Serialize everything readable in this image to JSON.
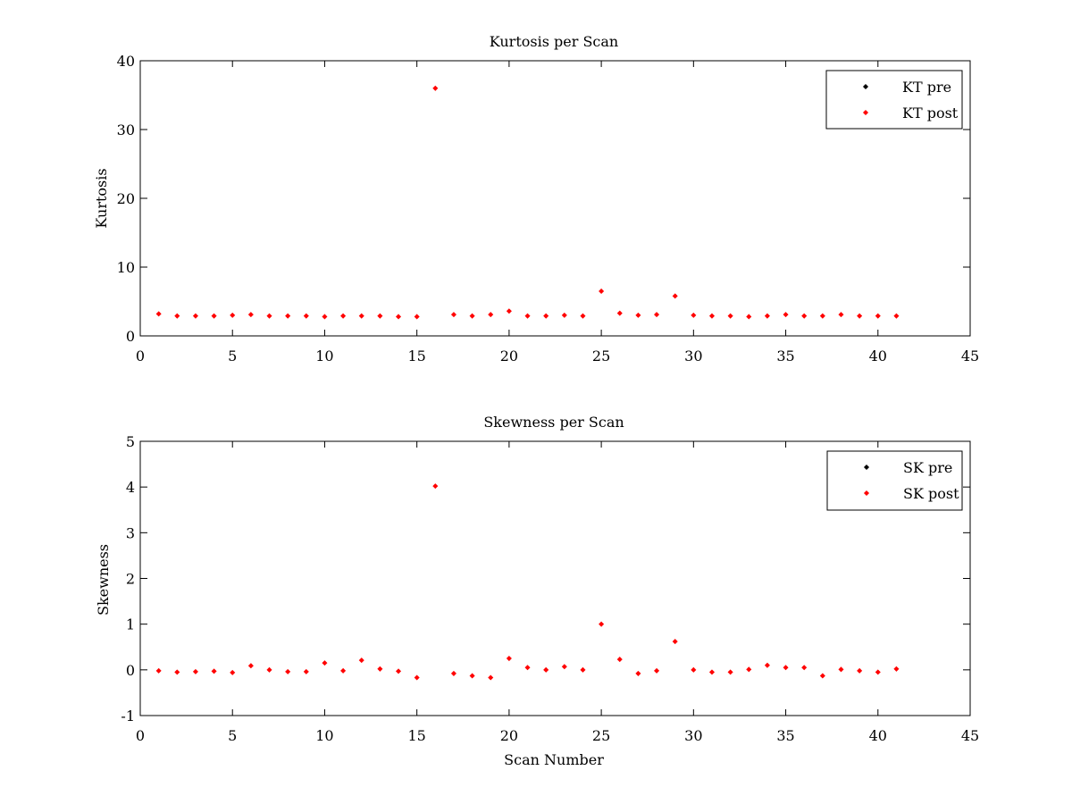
{
  "chart_data": [
    {
      "type": "scatter",
      "title": "Kurtosis per Scan",
      "xlabel": "",
      "ylabel": "Kurtosis",
      "xlim": [
        0,
        45
      ],
      "ylim": [
        0,
        40
      ],
      "xticks": [
        0,
        5,
        10,
        15,
        20,
        25,
        30,
        35,
        40,
        45
      ],
      "yticks": [
        0,
        10,
        20,
        30,
        40
      ],
      "grid": false,
      "legend_position": "top-right",
      "series": [
        {
          "name": "KT pre",
          "color": "#000000",
          "marker": "diamond",
          "x": [],
          "y": []
        },
        {
          "name": "KT post",
          "color": "#ff0000",
          "marker": "diamond",
          "x": [
            1,
            2,
            3,
            4,
            5,
            6,
            7,
            8,
            9,
            10,
            11,
            12,
            13,
            14,
            15,
            16,
            17,
            18,
            19,
            20,
            21,
            22,
            23,
            24,
            25,
            26,
            27,
            28,
            29,
            30,
            31,
            32,
            33,
            34,
            35,
            36,
            37,
            38,
            39,
            40,
            41
          ],
          "y": [
            3.2,
            2.9,
            2.9,
            2.9,
            3.0,
            3.1,
            2.9,
            2.9,
            2.9,
            2.8,
            2.9,
            2.9,
            2.9,
            2.8,
            2.8,
            36.0,
            3.1,
            2.9,
            3.1,
            3.6,
            2.9,
            2.9,
            3.0,
            2.9,
            6.5,
            3.3,
            3.0,
            3.1,
            5.8,
            3.0,
            2.9,
            2.9,
            2.8,
            2.9,
            3.1,
            2.9,
            2.9,
            3.1,
            2.9,
            2.9,
            2.9
          ]
        }
      ]
    },
    {
      "type": "scatter",
      "title": "Skewness per Scan",
      "xlabel": "Scan Number",
      "ylabel": "Skewness",
      "xlim": [
        0,
        45
      ],
      "ylim": [
        -1,
        5
      ],
      "xticks": [
        0,
        5,
        10,
        15,
        20,
        25,
        30,
        35,
        40,
        45
      ],
      "yticks": [
        -1,
        0,
        1,
        2,
        3,
        4,
        5
      ],
      "grid": false,
      "legend_position": "top-right",
      "series": [
        {
          "name": "SK pre",
          "color": "#000000",
          "marker": "diamond",
          "x": [],
          "y": []
        },
        {
          "name": "SK post",
          "color": "#ff0000",
          "marker": "diamond",
          "x": [
            1,
            2,
            3,
            4,
            5,
            6,
            7,
            8,
            9,
            10,
            11,
            12,
            13,
            14,
            15,
            16,
            17,
            18,
            19,
            20,
            21,
            22,
            23,
            24,
            25,
            26,
            27,
            28,
            29,
            30,
            31,
            32,
            33,
            34,
            35,
            36,
            37,
            38,
            39,
            40,
            41
          ],
          "y": [
            -0.02,
            -0.05,
            -0.04,
            -0.03,
            -0.06,
            0.09,
            0.0,
            -0.04,
            -0.04,
            0.15,
            -0.02,
            0.21,
            0.02,
            -0.03,
            -0.17,
            4.02,
            -0.08,
            -0.13,
            -0.17,
            0.25,
            0.05,
            0.0,
            0.07,
            0.0,
            1.0,
            0.23,
            -0.08,
            -0.02,
            0.62,
            0.0,
            -0.05,
            -0.05,
            0.01,
            0.1,
            0.05,
            0.05,
            -0.13,
            0.01,
            -0.02,
            -0.05,
            0.02
          ]
        }
      ]
    }
  ]
}
